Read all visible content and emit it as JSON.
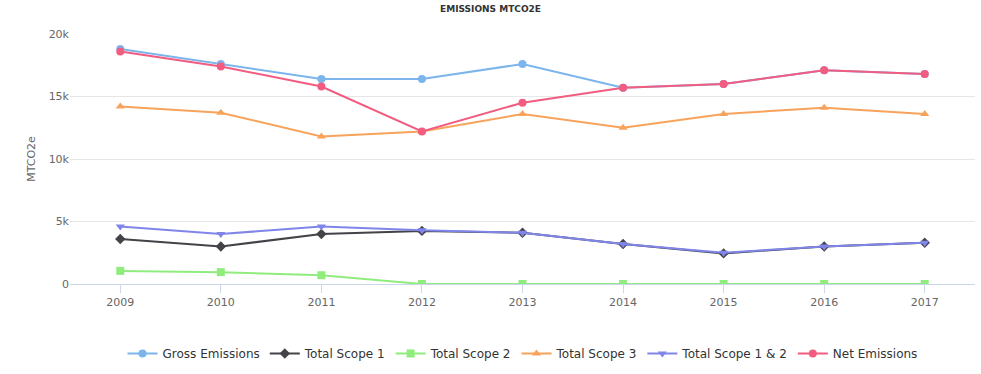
{
  "chart_data": {
    "type": "line",
    "title": "EMISSIONS MTCO2E",
    "y_label": "MTCO2e",
    "categories": [
      "2009",
      "2010",
      "2011",
      "2012",
      "2013",
      "2014",
      "2015",
      "2016",
      "2017"
    ],
    "series": [
      {
        "name": "Gross Emissions",
        "color": "#7cb5ec",
        "marker": "circle",
        "values": [
          18800,
          17600,
          16400,
          16400,
          17600,
          15700,
          16000,
          17100,
          16800
        ]
      },
      {
        "name": "Total Scope 1",
        "color": "#434348",
        "marker": "diamond",
        "values": [
          3600,
          3000,
          4000,
          4250,
          4100,
          3200,
          2450,
          3000,
          3300
        ]
      },
      {
        "name": "Total Scope 2",
        "color": "#90ed7d",
        "marker": "square",
        "values": [
          1050,
          950,
          700,
          0,
          0,
          0,
          0,
          0,
          0
        ]
      },
      {
        "name": "Total Scope 3",
        "color": "#f7a35c",
        "marker": "triangle-up",
        "values": [
          14200,
          13700,
          11800,
          12200,
          13600,
          12500,
          13600,
          14100,
          13600
        ]
      },
      {
        "name": "Total Scope 1 & 2",
        "color": "#8085e9",
        "marker": "triangle-down",
        "values": [
          4600,
          4000,
          4600,
          4300,
          4100,
          3200,
          2500,
          3000,
          3300
        ]
      },
      {
        "name": "Net Emissions",
        "color": "#f15c80",
        "marker": "circle",
        "values": [
          18600,
          17400,
          15800,
          12200,
          14500,
          15700,
          16000,
          17100,
          16800
        ]
      }
    ],
    "ylim": [
      0,
      20000
    ],
    "yticks": [
      0,
      {
        "value": 5000,
        "label": "5k"
      },
      {
        "value": 10000,
        "label": "10k"
      },
      {
        "value": 15000,
        "label": "15k"
      },
      {
        "value": 20000,
        "label": "20k"
      }
    ],
    "grid": true,
    "legend": "bottom"
  }
}
